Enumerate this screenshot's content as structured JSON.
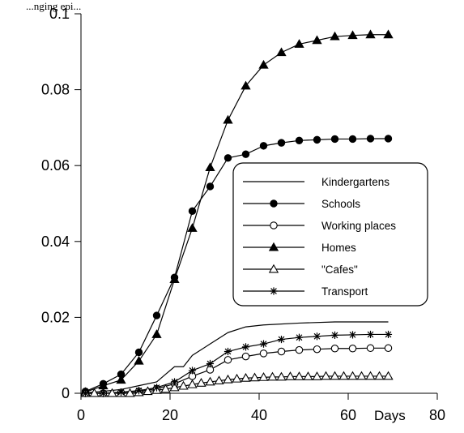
{
  "caption": "...nging epi...",
  "chart_data": {
    "type": "line",
    "xlabel": "Days",
    "ylabel": "",
    "xlim": [
      0,
      80
    ],
    "ylim": [
      0,
      0.1
    ],
    "x_ticks": [
      0,
      20,
      40,
      60,
      80
    ],
    "y_ticks": [
      0,
      0.02,
      0.04,
      0.06,
      0.08,
      0.1
    ],
    "x_tick_labels": [
      "0",
      "20",
      "40",
      "60",
      "80"
    ],
    "y_tick_labels": [
      "0",
      "0.02",
      "0.04",
      "0.06",
      "0.08",
      "0.1"
    ],
    "grid": false,
    "legend_position": "center-right",
    "series": [
      {
        "name": "Kindergartens",
        "marker": "none",
        "x": [
          0,
          5,
          9,
          13,
          17,
          19,
          21,
          23,
          25,
          29,
          33,
          37,
          41,
          49,
          57,
          69
        ],
        "y": [
          0,
          0.0005,
          0.001,
          0.002,
          0.003,
          0.005,
          0.007,
          0.007,
          0.01,
          0.013,
          0.016,
          0.0175,
          0.018,
          0.0185,
          0.0188,
          0.0188
        ]
      },
      {
        "name": "Schools",
        "marker": "filled-circle",
        "x": [
          1,
          5,
          9,
          13,
          17,
          21,
          25,
          29,
          33,
          37,
          41,
          45,
          49,
          53,
          57,
          61,
          65,
          69
        ],
        "y": [
          0.0005,
          0.0025,
          0.005,
          0.0108,
          0.0205,
          0.0305,
          0.048,
          0.0545,
          0.062,
          0.063,
          0.0652,
          0.066,
          0.0666,
          0.0668,
          0.067,
          0.067,
          0.0671,
          0.0671
        ]
      },
      {
        "name": "Working places",
        "marker": "open-circle",
        "x": [
          1,
          5,
          9,
          13,
          17,
          21,
          25,
          29,
          33,
          37,
          41,
          45,
          49,
          53,
          57,
          61,
          65,
          69
        ],
        "y": [
          0,
          0,
          0.0002,
          0.0005,
          0.0012,
          0.0025,
          0.0045,
          0.0062,
          0.0088,
          0.0097,
          0.0105,
          0.011,
          0.0114,
          0.0116,
          0.0118,
          0.0118,
          0.0119,
          0.0119
        ]
      },
      {
        "name": "Homes",
        "marker": "filled-triangle",
        "x": [
          1,
          5,
          9,
          13,
          17,
          21,
          25,
          29,
          33,
          37,
          41,
          45,
          49,
          53,
          57,
          61,
          65,
          69
        ],
        "y": [
          0.0003,
          0.002,
          0.0035,
          0.0085,
          0.0155,
          0.03,
          0.0435,
          0.0595,
          0.072,
          0.081,
          0.0865,
          0.0898,
          0.092,
          0.093,
          0.094,
          0.0943,
          0.0945,
          0.0945
        ]
      },
      {
        "name": "\"Cafes\"",
        "marker": "open-triangle",
        "x": [
          1,
          3,
          5,
          7,
          9,
          11,
          13,
          15,
          17,
          19,
          21,
          23,
          25,
          27,
          29,
          31,
          33,
          35,
          37,
          39,
          41,
          43,
          45,
          47,
          49,
          51,
          53,
          55,
          57,
          59,
          61,
          63,
          65,
          67,
          69
        ],
        "y": [
          0,
          0,
          0,
          0,
          0,
          0,
          0.0002,
          0.0005,
          0.0008,
          0.0011,
          0.0015,
          0.0019,
          0.0023,
          0.0027,
          0.003,
          0.0033,
          0.0036,
          0.0038,
          0.004,
          0.0041,
          0.0042,
          0.0043,
          0.0043,
          0.0044,
          0.0044,
          0.0044,
          0.0044,
          0.0045,
          0.0045,
          0.0045,
          0.0045,
          0.0045,
          0.0045,
          0.0045,
          0.0045
        ]
      },
      {
        "name": "Transport",
        "marker": "asterisk",
        "x": [
          1,
          5,
          9,
          13,
          17,
          21,
          25,
          29,
          33,
          37,
          41,
          45,
          49,
          53,
          57,
          61,
          65,
          69
        ],
        "y": [
          0,
          0,
          0.0003,
          0.0007,
          0.0015,
          0.003,
          0.006,
          0.0078,
          0.011,
          0.0122,
          0.013,
          0.0142,
          0.0147,
          0.015,
          0.0153,
          0.0154,
          0.0155,
          0.0155
        ]
      }
    ]
  }
}
